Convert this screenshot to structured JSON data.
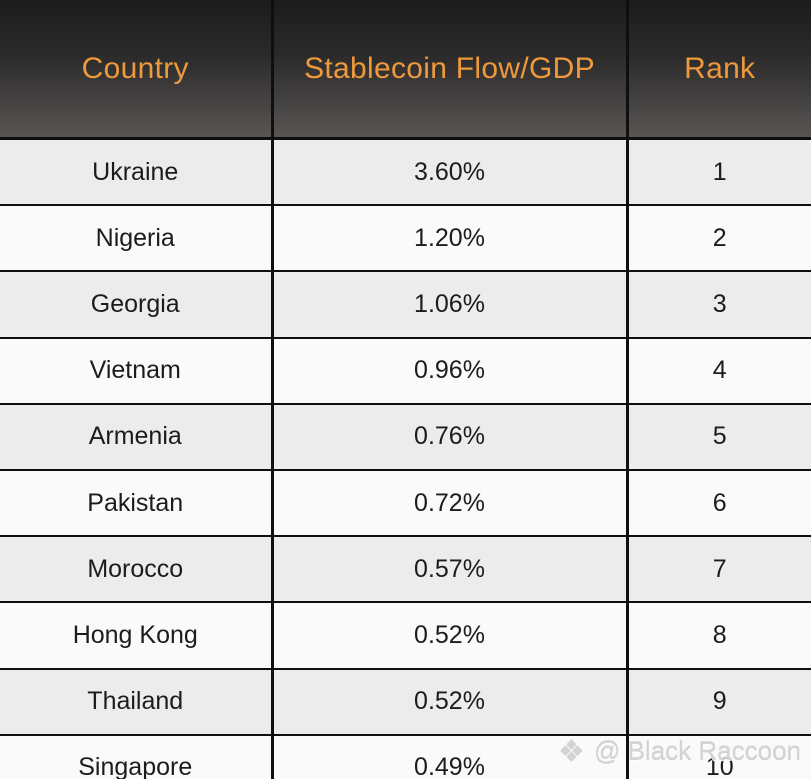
{
  "chart_data": {
    "type": "table",
    "columns": [
      "Country",
      "Stablecoin Flow/GDP",
      "Rank"
    ],
    "rows": [
      [
        "Ukraine",
        "3.60%",
        "1"
      ],
      [
        "Nigeria",
        "1.20%",
        "2"
      ],
      [
        "Georgia",
        "1.06%",
        "3"
      ],
      [
        "Vietnam",
        "0.96%",
        "4"
      ],
      [
        "Armenia",
        "0.76%",
        "5"
      ],
      [
        "Pakistan",
        "0.72%",
        "6"
      ],
      [
        "Morocco",
        "0.57%",
        "7"
      ],
      [
        "Hong Kong",
        "0.52%",
        "8"
      ],
      [
        "Thailand",
        "0.52%",
        "9"
      ],
      [
        "Singapore",
        "0.49%",
        "10"
      ]
    ],
    "layout_hints": {
      "header_style": "dark-gradient",
      "zebra_striping": true,
      "first_data_row_shade": "gray"
    }
  },
  "watermark": {
    "icon": "four-diamond-icon",
    "icon_glyph": "❖",
    "handle": "@ Black Raccoon"
  },
  "colors": {
    "header_gradient_top": "#1d1c1c",
    "header_gradient_bottom": "#585553",
    "header_text": "#ee9a3c",
    "row_odd_bg": "#ececec",
    "row_even_bg": "#fafafa",
    "border": "#0f0f0f",
    "cell_text": "#1c1c1c",
    "watermark_text": "#d3d3d3"
  }
}
